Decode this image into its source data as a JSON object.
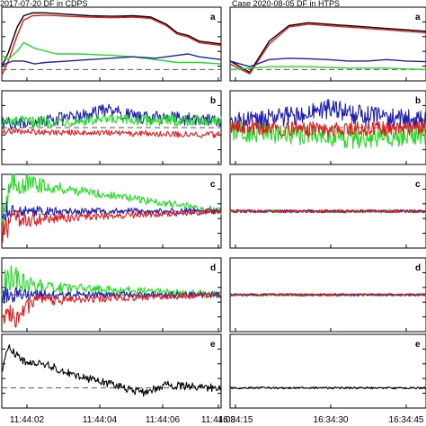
{
  "titles": {
    "left": "2017-07-20 DF in CDPS",
    "right": "Case 2020-08-05 DF in HTPS"
  },
  "colors": {
    "black": "#000000",
    "red": "#e41a1c",
    "green": "#22dd22",
    "blue": "#1f1fb4",
    "dashed": "#555555"
  },
  "chart_data": [
    {
      "type": "line",
      "case": "left",
      "x_tick_labels": [
        "11:44:02",
        "11:44:04",
        "11:44:06",
        "11:44:08"
      ],
      "panels": [
        {
          "label": "a",
          "ylim": [
            -0.4,
            2.2
          ],
          "reference_line": 0,
          "series": [
            {
              "color": "black",
              "x": [
                0,
                0.03,
                0.07,
                0.1,
                0.14,
                0.2,
                0.3,
                0.4,
                0.5,
                0.6,
                0.68,
                0.75,
                0.8,
                0.85,
                0.9,
                1.0
              ],
              "y": [
                0.1,
                0.6,
                1.5,
                1.9,
                2.0,
                2.0,
                1.95,
                1.9,
                1.88,
                1.9,
                1.85,
                1.6,
                1.3,
                1.2,
                1.0,
                0.9
              ]
            },
            {
              "color": "red",
              "x": [
                0,
                0.03,
                0.07,
                0.1,
                0.14,
                0.2,
                0.3,
                0.4,
                0.5,
                0.6,
                0.68,
                0.75,
                0.8,
                0.85,
                0.9,
                1.0
              ],
              "y": [
                -0.2,
                0.3,
                1.2,
                1.75,
                1.9,
                1.92,
                1.88,
                1.85,
                1.83,
                1.85,
                1.8,
                1.55,
                1.25,
                1.15,
                0.95,
                0.85
              ]
            },
            {
              "color": "green",
              "x": [
                0,
                0.03,
                0.07,
                0.1,
                0.15,
                0.25,
                0.35,
                0.5,
                0.6,
                0.7,
                0.8,
                0.9,
                1.0
              ],
              "y": [
                0.5,
                0.35,
                0.65,
                0.95,
                0.75,
                0.55,
                0.55,
                0.5,
                0.45,
                0.35,
                0.25,
                0.25,
                0.2
              ]
            },
            {
              "color": "blue",
              "x": [
                0,
                0.05,
                0.1,
                0.15,
                0.2,
                0.3,
                0.4,
                0.5,
                0.6,
                0.7,
                0.8,
                0.85,
                0.9,
                1.0
              ],
              "y": [
                0.15,
                0.3,
                0.3,
                0.2,
                0.25,
                0.3,
                0.35,
                0.4,
                0.45,
                0.4,
                0.5,
                0.55,
                0.45,
                0.35
              ]
            }
          ]
        },
        {
          "label": "b",
          "ylim": [
            -1,
            1
          ],
          "reference_line": 0,
          "series": [
            {
              "color": "blue",
              "noise": 0.18,
              "trend": [
                [
                  0,
                  0.1
                ],
                [
                  0.3,
                  0.25
                ],
                [
                  0.5,
                  0.5
                ],
                [
                  0.6,
                  0.3
                ],
                [
                  1.0,
                  0.2
                ]
              ]
            },
            {
              "color": "green",
              "noise": 0.15,
              "trend": [
                [
                  0,
                  0.15
                ],
                [
                  0.5,
                  0.2
                ],
                [
                  1.0,
                  0.2
                ]
              ]
            },
            {
              "color": "red",
              "noise": 0.08,
              "trend": [
                [
                  0,
                  -0.1
                ],
                [
                  0.5,
                  -0.15
                ],
                [
                  1.0,
                  -0.2
                ]
              ]
            }
          ]
        },
        {
          "label": "c",
          "ylim": [
            -1.2,
            1.2
          ],
          "reference_line": 0,
          "series": [
            {
              "color": "green",
              "noise": 0.12,
              "decay": 1.0,
              "trend": [
                [
                  0,
                  0
                ],
                [
                  0.05,
                  0.9
                ],
                [
                  0.12,
                  0.9
                ],
                [
                  1.0,
                  0
                ]
              ]
            },
            {
              "color": "blue",
              "noise": 0.1,
              "decay": 0.6,
              "trend": [
                [
                  0,
                  0
                ],
                [
                  1.0,
                  0
                ]
              ]
            },
            {
              "color": "red",
              "noise": 0.1,
              "decay": 1.0,
              "trend": [
                [
                  0,
                  -0.8
                ],
                [
                  0.05,
                  -0.3
                ],
                [
                  1.0,
                  0
                ]
              ]
            }
          ]
        },
        {
          "label": "d",
          "ylim": [
            -1.2,
            1.2
          ],
          "reference_line": 0,
          "series": [
            {
              "color": "green",
              "noise": 0.12,
              "decay": 0.9,
              "trend": [
                [
                  0,
                  0.2
                ],
                [
                  0.05,
                  0.6
                ],
                [
                  0.12,
                  0.3
                ],
                [
                  1.0,
                  0
                ]
              ]
            },
            {
              "color": "blue",
              "noise": 0.1,
              "decay": 0.6,
              "trend": [
                [
                  0,
                  0
                ],
                [
                  1.0,
                  0
                ]
              ]
            },
            {
              "color": "red",
              "noise": 0.1,
              "decay": 1.0,
              "trend": [
                [
                  0,
                  -0.5
                ],
                [
                  0.05,
                  -0.8
                ],
                [
                  0.15,
                  -0.2
                ],
                [
                  1.0,
                  0
                ]
              ]
            }
          ]
        },
        {
          "label": "e",
          "ylim": [
            -0.6,
            1.6
          ],
          "reference_line": 0,
          "series": [
            {
              "color": "black",
              "noise": 0.12,
              "trend": [
                [
                  0,
                  0.5
                ],
                [
                  0.03,
                  1.2
                ],
                [
                  0.1,
                  0.8
                ],
                [
                  0.2,
                  0.7
                ],
                [
                  0.35,
                  0.35
                ],
                [
                  0.5,
                  0.1
                ],
                [
                  0.65,
                  -0.15
                ],
                [
                  0.75,
                  0.1
                ],
                [
                  0.85,
                  0.05
                ],
                [
                  1.0,
                  0
                ]
              ]
            }
          ]
        }
      ]
    },
    {
      "type": "line",
      "case": "right",
      "x_tick_labels": [
        "16:34:15",
        "16:34:30",
        "16:34:45"
      ],
      "panels": [
        {
          "label": "a",
          "ylim": [
            -0.4,
            2.2
          ],
          "reference_line": 0,
          "series": [
            {
              "color": "black",
              "x": [
                0,
                0.1,
                0.2,
                0.3,
                0.4,
                0.5,
                0.6,
                0.7,
                0.8,
                0.9,
                1.0
              ],
              "y": [
                0.3,
                -0.1,
                1.0,
                1.55,
                1.65,
                1.6,
                1.55,
                1.5,
                1.45,
                1.4,
                1.35
              ]
            },
            {
              "color": "red",
              "x": [
                0,
                0.1,
                0.2,
                0.3,
                0.4,
                0.5,
                0.6,
                0.7,
                0.8,
                0.9,
                1.0
              ],
              "y": [
                0.2,
                -0.15,
                0.9,
                1.5,
                1.6,
                1.55,
                1.5,
                1.45,
                1.4,
                1.35,
                1.3
              ]
            },
            {
              "color": "green",
              "x": [
                0,
                0.1,
                0.2,
                0.4,
                0.6,
                0.8,
                1.0
              ],
              "y": [
                0.0,
                0.05,
                0.1,
                0.1,
                0.05,
                0.05,
                0.0
              ]
            },
            {
              "color": "blue",
              "x": [
                0,
                0.1,
                0.2,
                0.3,
                0.4,
                0.5,
                0.6,
                0.7,
                0.8,
                0.9,
                1.0
              ],
              "y": [
                0.3,
                0.1,
                0.35,
                0.4,
                0.38,
                0.35,
                0.3,
                0.3,
                0.35,
                0.3,
                0.28
              ]
            }
          ]
        },
        {
          "label": "b",
          "ylim": [
            -1,
            1
          ],
          "reference_line": 0,
          "series": [
            {
              "color": "blue",
              "noise": 0.28,
              "trend": [
                [
                  0,
                  0.1
                ],
                [
                  0.3,
                  0.3
                ],
                [
                  0.5,
                  0.5
                ],
                [
                  0.7,
                  0.3
                ],
                [
                  1.0,
                  0.2
                ]
              ]
            },
            {
              "color": "green",
              "noise": 0.28,
              "trend": [
                [
                  0,
                  -0.1
                ],
                [
                  0.4,
                  -0.2
                ],
                [
                  0.6,
                  -0.3
                ],
                [
                  1.0,
                  -0.2
                ]
              ]
            },
            {
              "color": "red",
              "noise": 0.2,
              "trend": [
                [
                  0,
                  0
                ],
                [
                  0.5,
                  -0.05
                ],
                [
                  1.0,
                  0
                ]
              ]
            }
          ]
        },
        {
          "label": "c",
          "ylim": [
            -1.2,
            1.2
          ],
          "reference_line": 0,
          "series": [
            {
              "color": "green",
              "noise": 0.05,
              "trend": [
                [
                  0,
                  0
                ],
                [
                  1.0,
                  0
                ]
              ]
            },
            {
              "color": "blue",
              "noise": 0.05,
              "trend": [
                [
                  0,
                  0
                ],
                [
                  1.0,
                  0
                ]
              ]
            },
            {
              "color": "red",
              "noise": 0.05,
              "trend": [
                [
                  0,
                  0
                ],
                [
                  1.0,
                  0
                ]
              ]
            }
          ]
        },
        {
          "label": "d",
          "ylim": [
            -1.2,
            1.2
          ],
          "reference_line": 0,
          "series": [
            {
              "color": "green",
              "noise": 0.04,
              "trend": [
                [
                  0,
                  0
                ],
                [
                  1.0,
                  0
                ]
              ]
            },
            {
              "color": "blue",
              "noise": 0.04,
              "trend": [
                [
                  0,
                  0
                ],
                [
                  1.0,
                  0
                ]
              ]
            },
            {
              "color": "red",
              "noise": 0.04,
              "trend": [
                [
                  0,
                  0
                ],
                [
                  1.0,
                  0
                ]
              ]
            }
          ]
        },
        {
          "label": "e",
          "ylim": [
            -0.6,
            1.6
          ],
          "reference_line": 0,
          "series": [
            {
              "color": "black",
              "noise": 0.03,
              "trend": [
                [
                  0,
                  0
                ],
                [
                  1.0,
                  0
                ]
              ]
            }
          ]
        }
      ]
    }
  ]
}
